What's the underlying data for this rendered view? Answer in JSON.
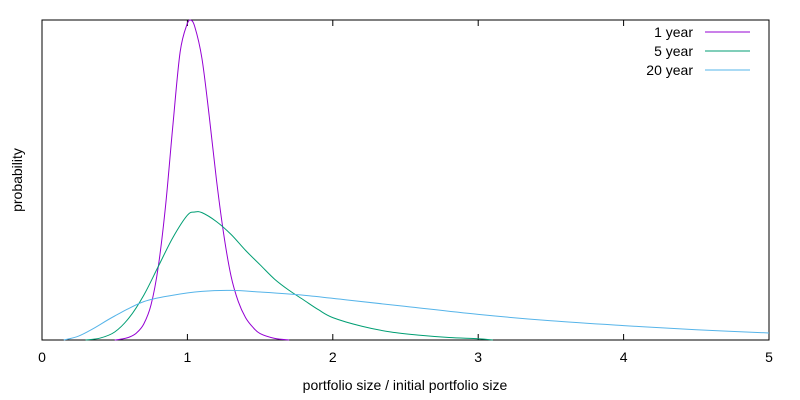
{
  "chart_data": {
    "type": "line",
    "title": "",
    "xlabel": "portfolio size / initial portfolio size",
    "ylabel": "probability",
    "xlim": [
      0,
      5
    ],
    "ylim": [
      0,
      1
    ],
    "x_ticks": [
      "0",
      "1",
      "2",
      "3",
      "4",
      "5"
    ],
    "y_tick_labels_shown": false,
    "grid": false,
    "legend_position": "top-right",
    "series": [
      {
        "name": "1 year",
        "color": "#9400d3",
        "x": [
          0.5,
          0.55,
          0.6,
          0.65,
          0.7,
          0.75,
          0.8,
          0.85,
          0.9,
          0.95,
          1.0,
          1.02,
          1.05,
          1.1,
          1.15,
          1.2,
          1.25,
          1.3,
          1.35,
          1.4,
          1.45,
          1.5,
          1.6,
          1.7
        ],
        "y": [
          0.0,
          0.003,
          0.009,
          0.022,
          0.05,
          0.11,
          0.23,
          0.42,
          0.67,
          0.9,
          0.99,
          1.0,
          0.98,
          0.88,
          0.7,
          0.5,
          0.33,
          0.2,
          0.12,
          0.07,
          0.04,
          0.02,
          0.005,
          0.0
        ]
      },
      {
        "name": "5 year",
        "color": "#009e73",
        "x": [
          0.3,
          0.4,
          0.5,
          0.6,
          0.7,
          0.8,
          0.9,
          1.0,
          1.05,
          1.1,
          1.2,
          1.3,
          1.4,
          1.5,
          1.6,
          1.7,
          1.8,
          1.9,
          2.0,
          2.2,
          2.4,
          2.6,
          2.8,
          3.0,
          3.1
        ],
        "y": [
          0.0,
          0.006,
          0.025,
          0.07,
          0.14,
          0.23,
          0.32,
          0.39,
          0.4,
          0.398,
          0.37,
          0.33,
          0.28,
          0.235,
          0.19,
          0.155,
          0.125,
          0.095,
          0.07,
          0.043,
          0.025,
          0.015,
          0.008,
          0.004,
          0.0
        ]
      },
      {
        "name": "20 year",
        "color": "#56b4e9",
        "x": [
          0.15,
          0.25,
          0.35,
          0.5,
          0.7,
          0.9,
          1.1,
          1.3,
          1.5,
          1.8,
          2.1,
          2.5,
          3.0,
          3.5,
          4.0,
          4.5,
          5.0
        ],
        "y": [
          0.0,
          0.012,
          0.035,
          0.075,
          0.12,
          0.14,
          0.152,
          0.155,
          0.15,
          0.14,
          0.125,
          0.105,
          0.08,
          0.06,
          0.045,
          0.032,
          0.022
        ]
      }
    ]
  }
}
